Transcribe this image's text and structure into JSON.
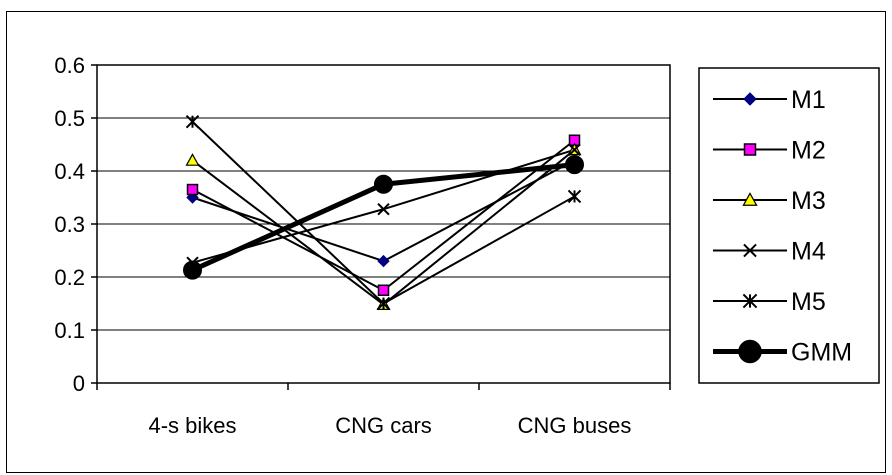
{
  "chart_data": {
    "type": "line",
    "categories": [
      "4-s bikes",
      "CNG cars",
      "CNG buses"
    ],
    "ylim": [
      0,
      0.6
    ],
    "yticks": [
      "0",
      "0.1",
      "0.2",
      "0.3",
      "0.4",
      "0.5",
      "0.6"
    ],
    "grid": "horizontal",
    "legend_position": "right",
    "series": [
      {
        "name": "M1",
        "values": [
          0.35,
          0.23,
          0.42
        ],
        "marker": "diamond",
        "color": "#000080",
        "fill": "#000080"
      },
      {
        "name": "M2",
        "values": [
          0.365,
          0.175,
          0.458
        ],
        "marker": "square",
        "color": "#000000",
        "fill": "#ff00ff"
      },
      {
        "name": "M3",
        "values": [
          0.42,
          0.148,
          0.44
        ],
        "marker": "triangle",
        "color": "#000000",
        "fill": "#ffff00"
      },
      {
        "name": "M4",
        "values": [
          0.227,
          0.328,
          0.44
        ],
        "marker": "x",
        "color": "#000000",
        "fill": "none"
      },
      {
        "name": "M5",
        "values": [
          0.493,
          0.15,
          0.352
        ],
        "marker": "star",
        "color": "#000000",
        "fill": "none"
      },
      {
        "name": "GMM",
        "values": [
          0.213,
          0.375,
          0.412
        ],
        "marker": "circle",
        "color": "#000000",
        "fill": "#000000",
        "bold": true
      }
    ]
  }
}
